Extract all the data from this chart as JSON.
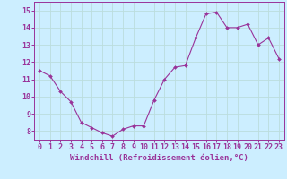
{
  "x": [
    0,
    1,
    2,
    3,
    4,
    5,
    6,
    7,
    8,
    9,
    10,
    11,
    12,
    13,
    14,
    15,
    16,
    17,
    18,
    19,
    20,
    21,
    22,
    23
  ],
  "y": [
    11.5,
    11.2,
    10.3,
    9.7,
    8.5,
    8.2,
    7.9,
    7.7,
    8.1,
    8.3,
    8.3,
    9.8,
    11.0,
    11.7,
    11.8,
    13.4,
    14.8,
    14.9,
    14.0,
    14.0,
    14.2,
    13.0,
    13.4,
    12.2
  ],
  "line_color": "#993399",
  "marker_color": "#993399",
  "bg_color": "#cceeff",
  "grid_color": "#bbdddd",
  "tick_label_color": "#993399",
  "axis_label_color": "#993399",
  "xlabel": "Windchill (Refroidissement éolien,°C)",
  "ylim": [
    7.5,
    15.5
  ],
  "yticks": [
    8,
    9,
    10,
    11,
    12,
    13,
    14,
    15
  ],
  "xticks": [
    0,
    1,
    2,
    3,
    4,
    5,
    6,
    7,
    8,
    9,
    10,
    11,
    12,
    13,
    14,
    15,
    16,
    17,
    18,
    19,
    20,
    21,
    22,
    23
  ],
  "font_family": "monospace",
  "xlabel_fontsize": 6.5,
  "tick_fontsize": 6.0
}
